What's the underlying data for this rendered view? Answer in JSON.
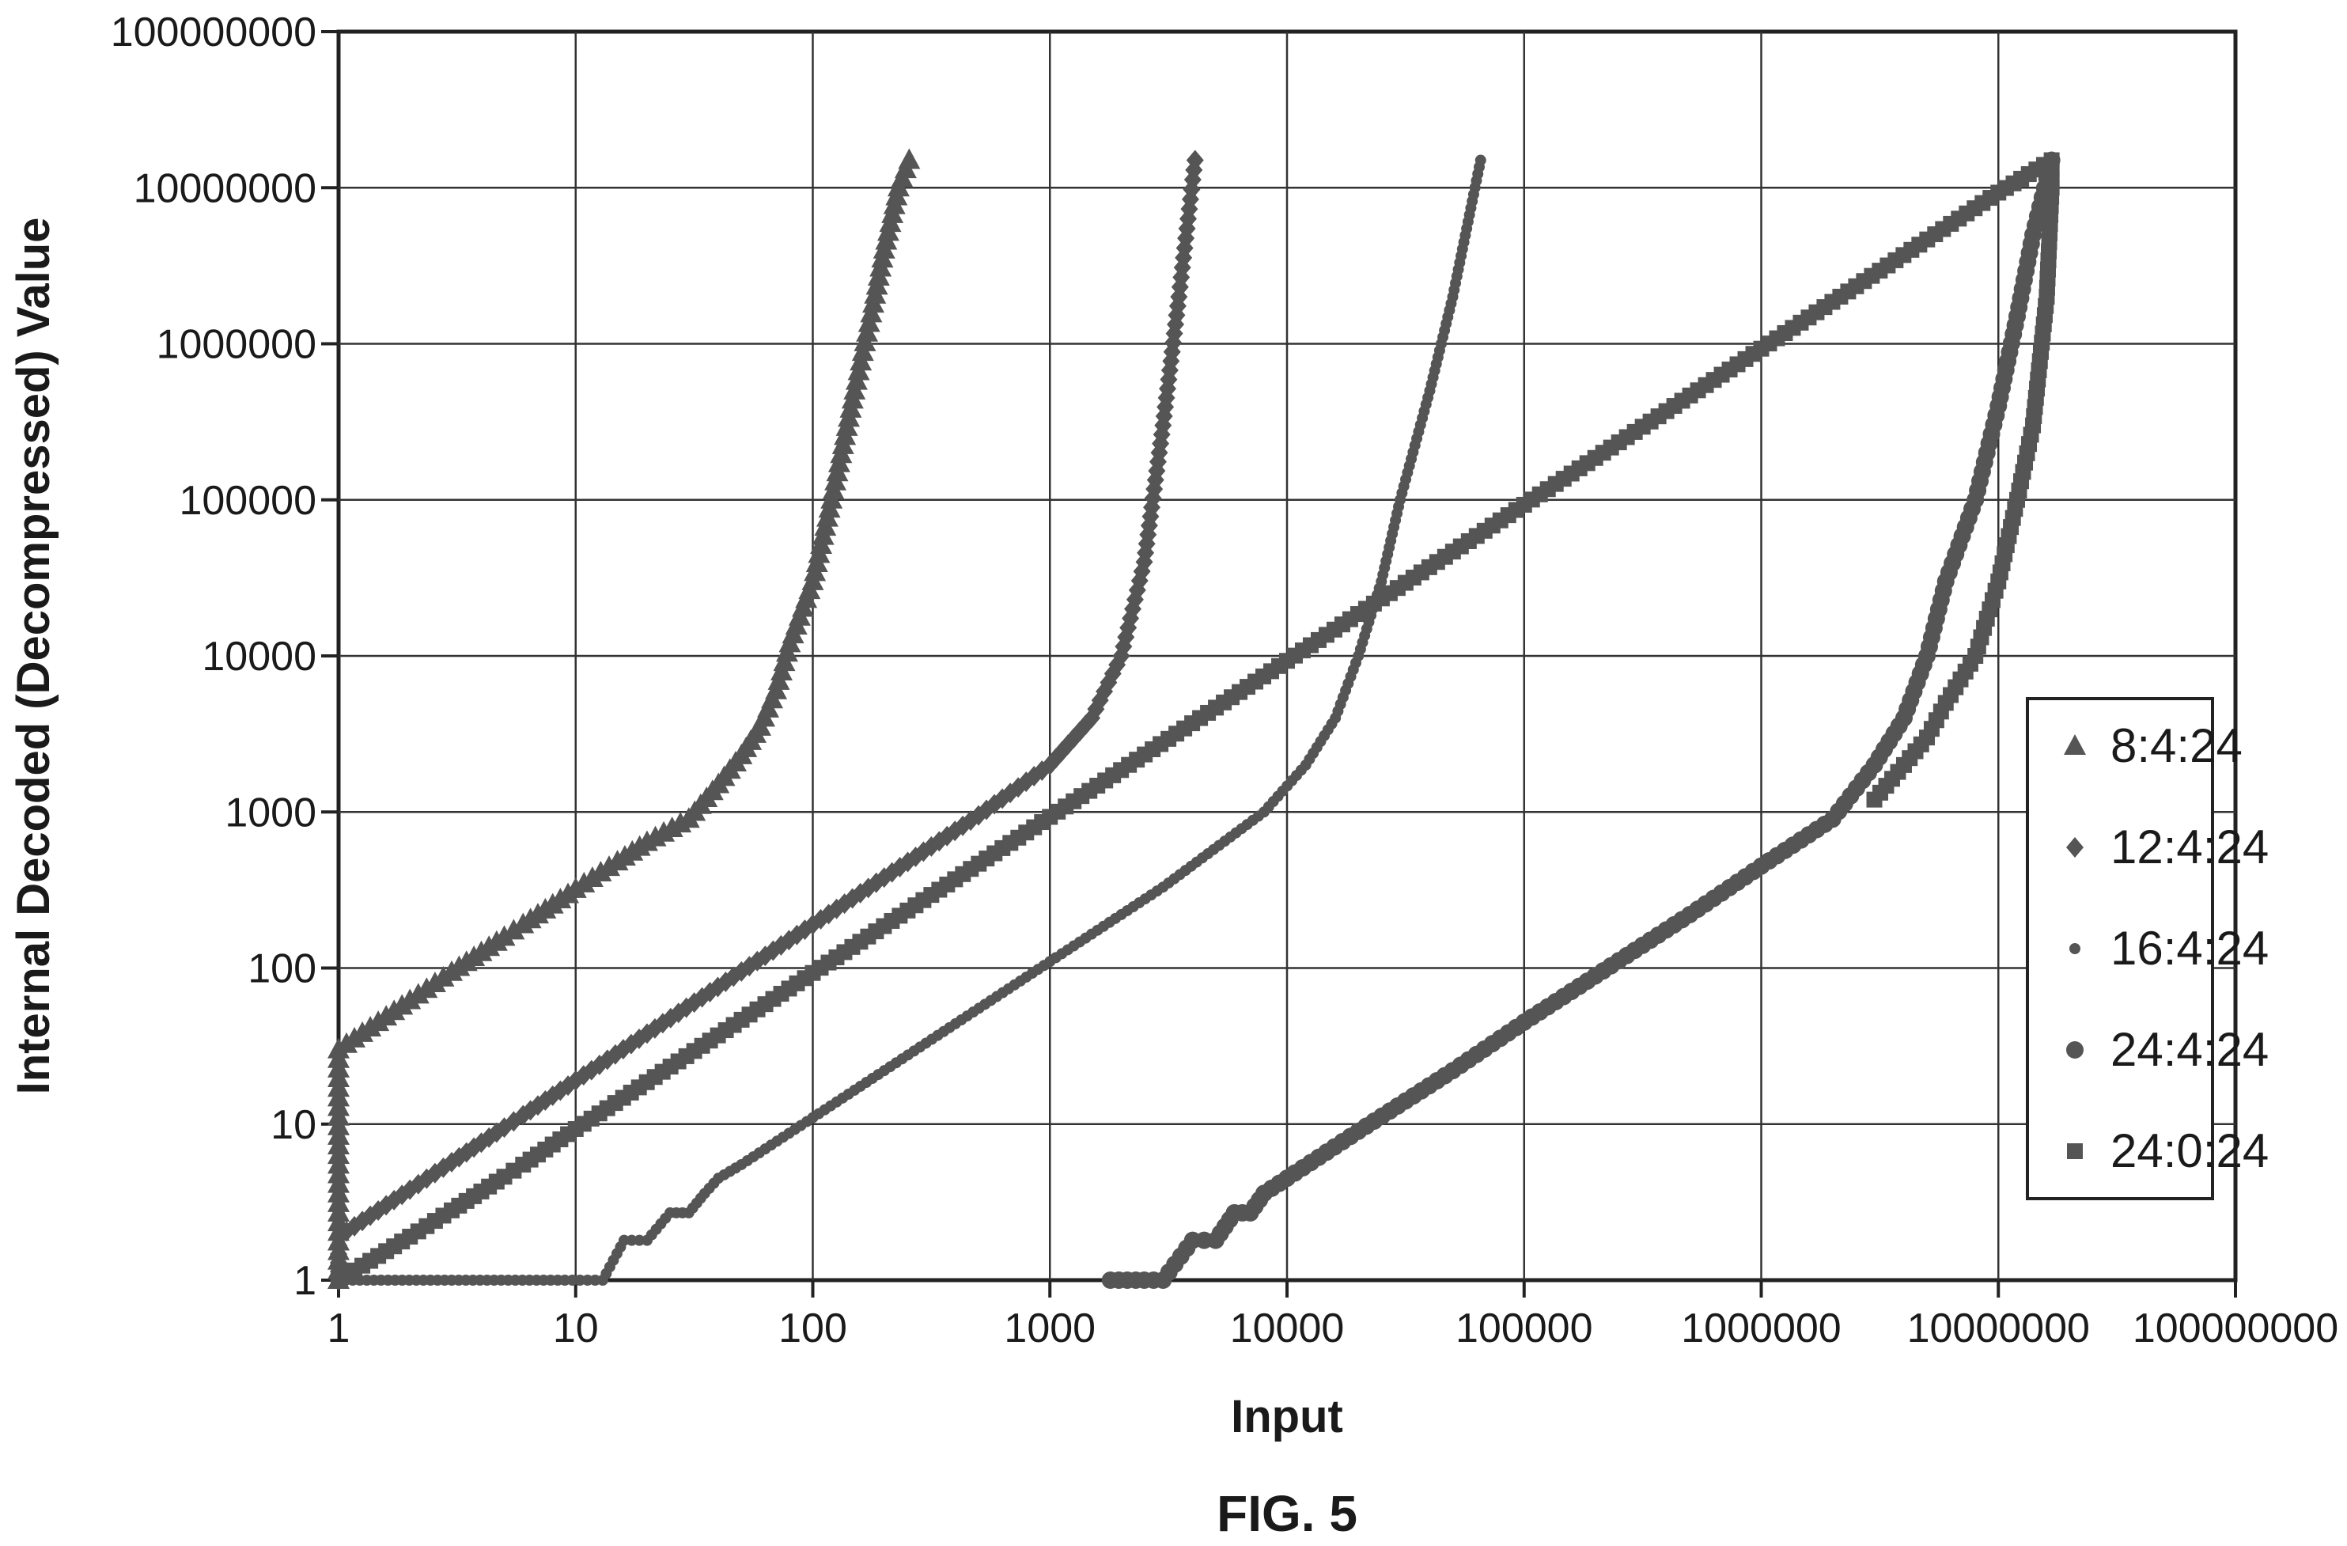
{
  "chart_data": {
    "type": "scatter",
    "title": "",
    "xlabel": "Input",
    "ylabel": "Internal Decoded (Decompressed) Value",
    "caption": "FIG. 5",
    "xscale": "log",
    "yscale": "log",
    "xlim": [
      1,
      100000000
    ],
    "ylim": [
      1,
      100000000
    ],
    "grid": true,
    "legend_position": "right",
    "x_tick_labels": [
      "1",
      "10",
      "100",
      "1000",
      "10000",
      "100000",
      "1000000",
      "10000000",
      "100000000"
    ],
    "y_tick_labels": [
      "1",
      "10",
      "100",
      "1000",
      "10000",
      "100000",
      "1000000",
      "10000000",
      "100000000"
    ],
    "series": [
      {
        "name": "8:4:24",
        "marker": "triangle",
        "points": [
          [
            1,
            1
          ],
          [
            1,
            30
          ],
          [
            2,
            62
          ],
          [
            3,
            94
          ],
          [
            4,
            126
          ],
          [
            5,
            158
          ],
          [
            6,
            190
          ],
          [
            8,
            254
          ],
          [
            10,
            320
          ],
          [
            15,
            480
          ],
          [
            20,
            640
          ],
          [
            30,
            900
          ],
          [
            40,
            1500
          ],
          [
            50,
            2300
          ],
          [
            60,
            3500
          ],
          [
            70,
            6000
          ],
          [
            80,
            12000
          ],
          [
            100,
            30000
          ],
          [
            120,
            100000
          ],
          [
            150,
            500000
          ],
          [
            180,
            1800000
          ],
          [
            200,
            4000000
          ],
          [
            230,
            10000000
          ],
          [
            255,
            15000000
          ]
        ]
      },
      {
        "name": "12:4:24",
        "marker": "diamond",
        "points": [
          [
            1,
            1
          ],
          [
            1,
            1.9
          ],
          [
            2,
            3.8
          ],
          [
            3,
            5.7
          ],
          [
            4,
            7.6
          ],
          [
            5,
            9.5
          ],
          [
            6,
            11.4
          ],
          [
            8,
            15.2
          ],
          [
            10,
            19
          ],
          [
            20,
            38
          ],
          [
            50,
            95
          ],
          [
            100,
            190
          ],
          [
            200,
            380
          ],
          [
            500,
            950
          ],
          [
            1000,
            2000
          ],
          [
            1500,
            4000
          ],
          [
            2000,
            10000
          ],
          [
            2500,
            40000
          ],
          [
            3000,
            300000
          ],
          [
            3500,
            2000000
          ],
          [
            4095,
            15000000
          ]
        ]
      },
      {
        "name": "16:4:24",
        "marker": "dot",
        "points": [
          [
            1,
            1
          ],
          [
            9,
            1
          ],
          [
            13,
            1
          ],
          [
            16,
            1.8
          ],
          [
            20,
            1.8
          ],
          [
            25,
            2.7
          ],
          [
            30,
            2.7
          ],
          [
            35,
            3.6
          ],
          [
            40,
            4.5
          ],
          [
            50,
            5.5
          ],
          [
            100,
            11
          ],
          [
            300,
            33
          ],
          [
            1000,
            110
          ],
          [
            3000,
            330
          ],
          [
            8000,
            1000
          ],
          [
            12000,
            2000
          ],
          [
            16000,
            4000
          ],
          [
            20000,
            10000
          ],
          [
            25000,
            30000
          ],
          [
            30000,
            100000
          ],
          [
            40000,
            500000
          ],
          [
            50000,
            2000000
          ],
          [
            65535,
            15000000
          ]
        ]
      },
      {
        "name": "24:4:24",
        "marker": "circle",
        "points": [
          [
            1800,
            1
          ],
          [
            2500,
            1
          ],
          [
            3000,
            1
          ],
          [
            4000,
            1.8
          ],
          [
            5000,
            1.8
          ],
          [
            6000,
            2.7
          ],
          [
            7000,
            2.7
          ],
          [
            8000,
            3.6
          ],
          [
            10000,
            4.5
          ],
          [
            20000,
            9
          ],
          [
            50000,
            22
          ],
          [
            100000,
            45
          ],
          [
            500000,
            220
          ],
          [
            1000000,
            450
          ],
          [
            2000000,
            900
          ],
          [
            3000000,
            2000
          ],
          [
            4000000,
            4000
          ],
          [
            5000000,
            10000
          ],
          [
            6000000,
            30000
          ],
          [
            8000000,
            100000
          ],
          [
            10000000,
            400000
          ],
          [
            12000000,
            1500000
          ],
          [
            14000000,
            5000000
          ],
          [
            16777215,
            15000000
          ]
        ]
      },
      {
        "name": "24:0:24",
        "marker": "square",
        "points": [
          [
            1,
            1
          ],
          [
            2,
            1.9
          ],
          [
            3,
            2.8
          ],
          [
            4,
            3.7
          ],
          [
            5,
            4.6
          ],
          [
            6,
            5.5
          ],
          [
            8,
            7.4
          ],
          [
            10,
            9.3
          ],
          [
            100,
            93
          ],
          [
            1000,
            930
          ],
          [
            10000,
            9300
          ],
          [
            100000,
            93000
          ],
          [
            1000000,
            930000
          ],
          [
            10000000,
            9300000
          ],
          [
            16777215,
            15000000
          ],
          [
            16777215,
            10000000
          ],
          [
            16000000,
            2000000
          ],
          [
            14000000,
            300000
          ],
          [
            12000000,
            100000
          ],
          [
            10000000,
            30000
          ],
          [
            8000000,
            10000
          ],
          [
            6000000,
            5000
          ],
          [
            5000000,
            3000
          ],
          [
            4000000,
            2000
          ],
          [
            3000000,
            1200
          ]
        ]
      }
    ]
  }
}
